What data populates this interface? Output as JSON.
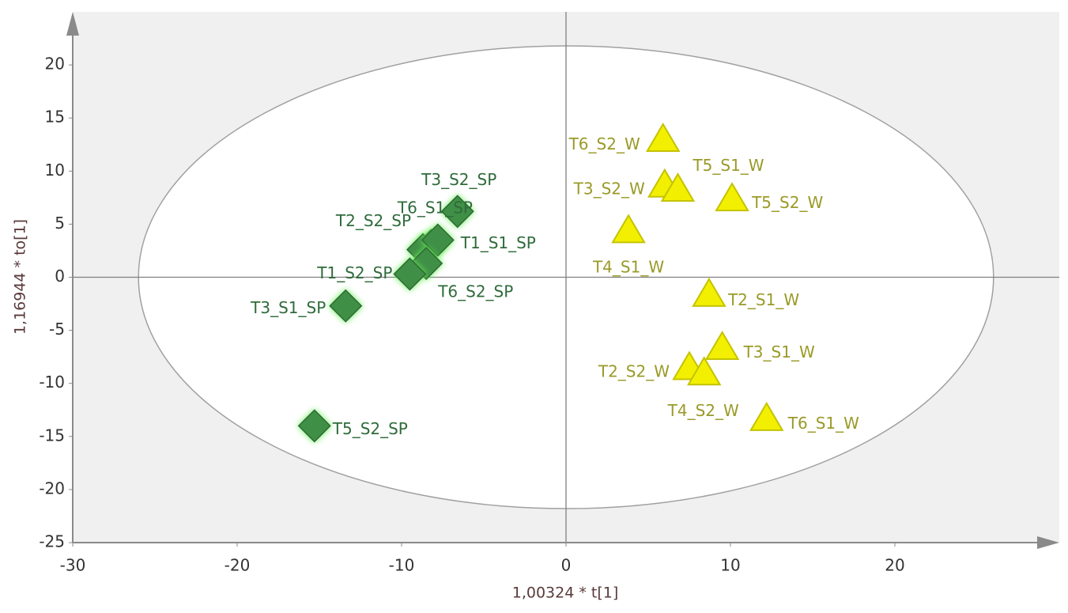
{
  "chart_data": {
    "type": "scatter",
    "x_label": "1,00324 * t[1]",
    "y_label": "1,16944 * to[1]",
    "xlim": [
      -30,
      30
    ],
    "ylim": [
      -25,
      25
    ],
    "xticks": [
      -30,
      -20,
      -10,
      0,
      10,
      20
    ],
    "yticks": [
      -25,
      -20,
      -15,
      -10,
      -5,
      0,
      5,
      10,
      15,
      20
    ],
    "grid": false,
    "ellipse": {
      "rx": 26,
      "ry": 21.8
    },
    "series": [
      {
        "marker": "diamond",
        "color": "#3f8f47",
        "label_color": "#2f6b3a",
        "labels": [
          "T3_S2_SP",
          "T6_S1_SP",
          "T2_S2_SP",
          "T1_S1_SP",
          "T6_S2_SP",
          "T1_S2_SP",
          "T3_S1_SP",
          "T5_S2_SP"
        ],
        "x": [
          -6.6,
          -8.2,
          -8.7,
          -7.8,
          -8.5,
          -9.5,
          -13.4,
          -15.3
        ],
        "values": [
          6.2,
          3.0,
          2.6,
          3.5,
          1.3,
          0.3,
          -2.7,
          -14.0
        ]
      },
      {
        "marker": "triangle",
        "color": "#f2f000",
        "label_color": "#9a9a28",
        "labels": [
          "T6_S2_W",
          "T3_S2_W",
          "T5_S1_W",
          "T5_S2_W",
          "T4_S1_W",
          "T2_S1_W",
          "T3_S1_W",
          "T2_S2_W",
          "T4_S2_W",
          "T6_S1_W"
        ],
        "x": [
          5.9,
          6.0,
          6.8,
          10.1,
          3.8,
          8.7,
          9.5,
          7.5,
          8.4,
          12.2
        ],
        "values": [
          12.9,
          8.6,
          8.2,
          7.3,
          4.3,
          -1.7,
          -6.7,
          -8.6,
          -9.1,
          -13.4
        ]
      }
    ]
  }
}
